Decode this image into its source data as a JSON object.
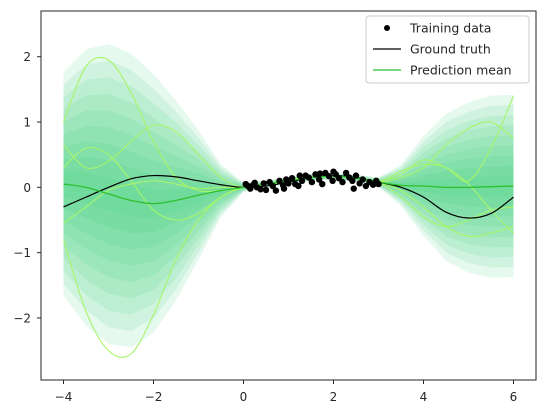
{
  "chart_data": {
    "type": "line",
    "title": "",
    "xlabel": "",
    "ylabel": "",
    "xlim": [
      -4.5,
      6.5
    ],
    "ylim": [
      -2.95,
      2.7
    ],
    "x_ticks": [
      -4,
      -2,
      0,
      2,
      4,
      6
    ],
    "y_ticks": [
      -2,
      -1,
      0,
      1,
      2
    ],
    "x_tick_labels": [
      "−4",
      "−2",
      "0",
      "2",
      "4",
      "6"
    ],
    "y_tick_labels": [
      "−2",
      "−1",
      "0",
      "1",
      "2"
    ],
    "grid": false,
    "legend_position": "top-right",
    "legend": [
      {
        "label": "Training data",
        "marker": "dot",
        "color": "#000000"
      },
      {
        "label": "Ground truth",
        "marker": "line",
        "color": "#000000"
      },
      {
        "label": "Prediction mean",
        "marker": "line",
        "color": "#2ec02e"
      }
    ],
    "colors": {
      "band": "#2ecc71",
      "mean": "#2ec02e",
      "samples": "#a6f56a",
      "truth": "#000000",
      "points": "#000000"
    },
    "confidence_band_levels": [
      0.1,
      0.2,
      0.3,
      0.4,
      0.5,
      0.6,
      0.7,
      0.8,
      0.9
    ],
    "confidence_band_half_width": {
      "x": [
        -4,
        -3.5,
        -3,
        -2.5,
        -2,
        -1.5,
        -1,
        -0.5,
        0,
        0.5,
        1,
        1.5,
        2,
        2.5,
        3,
        3.5,
        4,
        4.5,
        5,
        5.5,
        6
      ],
      "values": [
        1.9,
        2.35,
        2.55,
        2.5,
        2.2,
        1.7,
        1.1,
        0.45,
        0.08,
        0.06,
        0.06,
        0.06,
        0.06,
        0.06,
        0.08,
        0.35,
        0.85,
        1.25,
        1.45,
        1.55,
        1.55
      ]
    },
    "series": [
      {
        "name": "Ground truth",
        "x": [
          -4,
          -3.5,
          -3,
          -2.5,
          -2,
          -1.5,
          -1,
          -0.5,
          0,
          0.5,
          1,
          1.5,
          2,
          2.5,
          3,
          3.5,
          4,
          4.5,
          5,
          5.5,
          6
        ],
        "values": [
          -0.3,
          -0.15,
          0.0,
          0.13,
          0.18,
          0.16,
          0.1,
          0.04,
          0.0,
          0.02,
          0.08,
          0.15,
          0.18,
          0.15,
          0.08,
          0.0,
          -0.15,
          -0.38,
          -0.47,
          -0.4,
          -0.15
        ]
      },
      {
        "name": "Prediction mean",
        "x": [
          -4,
          -3.5,
          -3,
          -2.5,
          -2,
          -1.5,
          -1,
          -0.5,
          0,
          0.5,
          1,
          1.5,
          2,
          2.5,
          3,
          3.5,
          4,
          4.5,
          5,
          5.5,
          6
        ],
        "values": [
          0.05,
          0.0,
          -0.1,
          -0.2,
          -0.25,
          -0.2,
          -0.12,
          -0.05,
          0.0,
          0.05,
          0.1,
          0.15,
          0.17,
          0.14,
          0.08,
          0.03,
          0.02,
          0.0,
          0.0,
          0.01,
          0.02
        ]
      }
    ],
    "posterior_samples": {
      "x": [
        -4,
        -3.5,
        -3,
        -2.5,
        -2,
        -1.5,
        -1,
        -0.5,
        0,
        0.5,
        1,
        1.5,
        2,
        2.5,
        3,
        3.5,
        4,
        4.5,
        5,
        5.5,
        6
      ],
      "samples": [
        [
          1.0,
          1.85,
          1.95,
          1.45,
          0.7,
          0.15,
          -0.05,
          -0.05,
          0.0,
          0.05,
          0.12,
          0.16,
          0.17,
          0.14,
          0.1,
          0.2,
          0.42,
          0.3,
          0.1,
          0.6,
          1.4
        ],
        [
          -0.8,
          -1.9,
          -2.5,
          -2.55,
          -1.95,
          -1.1,
          -0.5,
          -0.15,
          0.0,
          0.05,
          0.1,
          0.15,
          0.17,
          0.14,
          0.08,
          -0.05,
          -0.3,
          -0.6,
          -0.75,
          -0.7,
          -0.6
        ],
        [
          0.65,
          0.3,
          0.4,
          0.7,
          0.95,
          0.85,
          0.5,
          0.15,
          0.0,
          0.05,
          0.1,
          0.15,
          0.17,
          0.14,
          0.08,
          0.25,
          0.35,
          0.3,
          0.05,
          -0.35,
          -0.7
        ],
        [
          0.3,
          0.6,
          0.5,
          0.1,
          -0.35,
          -0.5,
          -0.4,
          -0.15,
          0.0,
          0.05,
          0.1,
          0.15,
          0.17,
          0.14,
          0.08,
          0.15,
          0.3,
          0.65,
          0.9,
          1.0,
          0.75
        ],
        [
          -0.55,
          -0.3,
          -0.05,
          0.05,
          0.1,
          0.05,
          -0.02,
          0.0,
          0.0,
          0.05,
          0.1,
          0.15,
          0.17,
          0.14,
          0.08,
          -0.15,
          -0.45,
          -0.6,
          -0.5,
          -0.35,
          -0.3
        ]
      ]
    },
    "training_data": [
      [
        0.05,
        0.05
      ],
      [
        0.1,
        0.02
      ],
      [
        0.15,
        -0.02
      ],
      [
        0.22,
        0.04
      ],
      [
        0.3,
        0.0
      ],
      [
        0.38,
        -0.03
      ],
      [
        0.45,
        0.06
      ],
      [
        0.5,
        -0.04
      ],
      [
        0.58,
        0.08
      ],
      [
        0.65,
        0.02
      ],
      [
        0.72,
        -0.05
      ],
      [
        0.8,
        0.1
      ],
      [
        0.88,
        0.03
      ],
      [
        0.95,
        0.12
      ],
      [
        1.0,
        0.06
      ],
      [
        1.08,
        0.14
      ],
      [
        1.15,
        0.05
      ],
      [
        1.22,
        0.02
      ],
      [
        1.3,
        0.1
      ],
      [
        1.38,
        0.18
      ],
      [
        1.45,
        0.15
      ],
      [
        1.52,
        0.08
      ],
      [
        1.6,
        0.2
      ],
      [
        1.68,
        0.12
      ],
      [
        1.75,
        0.05
      ],
      [
        1.82,
        0.22
      ],
      [
        1.9,
        0.17
      ],
      [
        1.98,
        0.1
      ],
      [
        2.05,
        0.2
      ],
      [
        2.12,
        0.14
      ],
      [
        2.2,
        0.08
      ],
      [
        2.28,
        0.22
      ],
      [
        2.35,
        0.15
      ],
      [
        2.42,
        0.1
      ],
      [
        2.5,
        0.18
      ],
      [
        2.58,
        0.06
      ],
      [
        2.65,
        0.12
      ],
      [
        2.72,
        0.02
      ],
      [
        2.8,
        0.08
      ],
      [
        2.88,
        0.04
      ],
      [
        2.95,
        0.1
      ],
      [
        3.0,
        0.05
      ],
      [
        1.25,
        0.18
      ],
      [
        2.0,
        0.24
      ],
      [
        0.25,
        0.07
      ],
      [
        2.45,
        -0.02
      ],
      [
        1.7,
        0.21
      ],
      [
        0.9,
        -0.02
      ]
    ]
  }
}
